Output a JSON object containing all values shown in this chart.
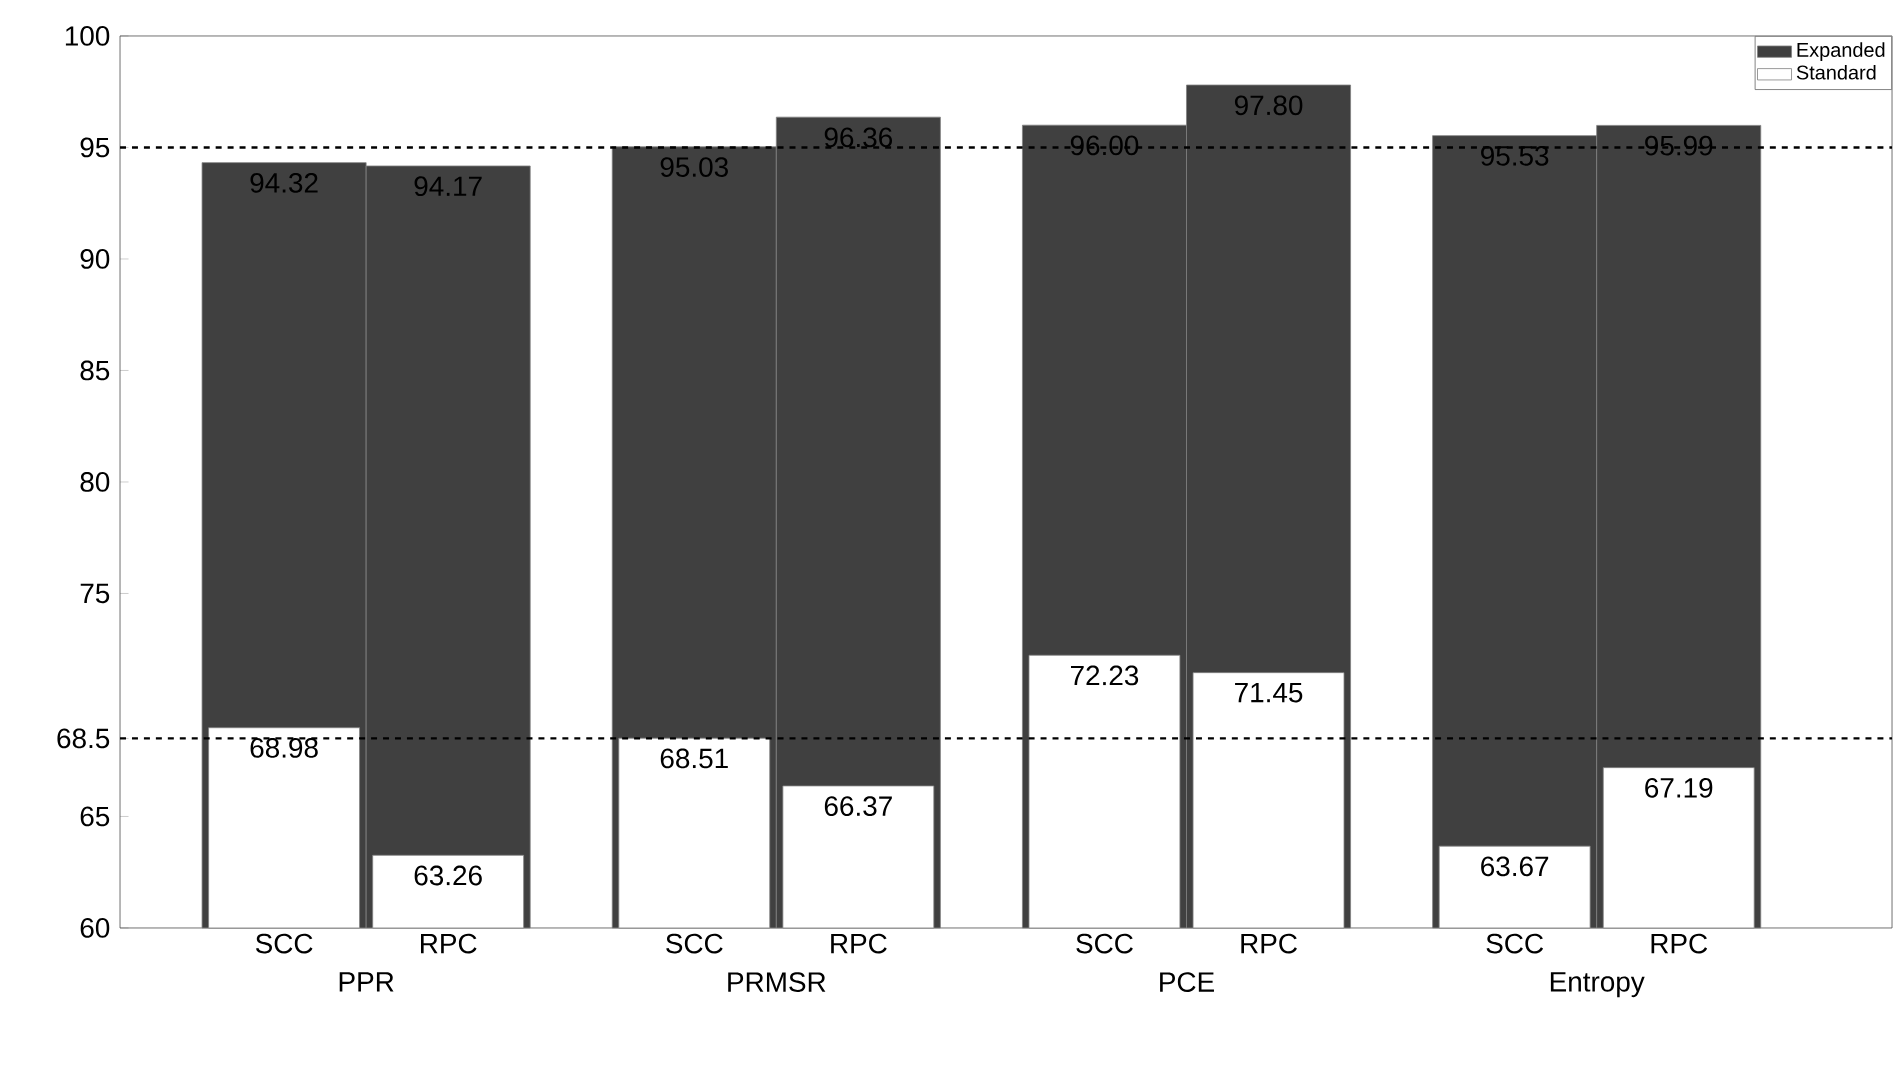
{
  "chart_data": {
    "type": "bar",
    "categories": [
      "SCC",
      "RPC",
      null,
      "SCC",
      "RPC",
      null,
      "SCC",
      "RPC",
      null,
      "SCC",
      "RPC"
    ],
    "series": [
      {
        "name": "Expanded",
        "color": "#404040",
        "values": [
          94.32,
          94.17,
          null,
          95.03,
          96.36,
          null,
          96.0,
          97.8,
          null,
          95.53,
          95.99
        ],
        "value_labels": [
          "94.32",
          "94.17",
          null,
          "95.03",
          "96.36",
          null,
          "96.00",
          "97.80",
          null,
          "95.53",
          "95.99"
        ]
      },
      {
        "name": "Standard",
        "color": "#ffffff",
        "values": [
          68.98,
          63.26,
          null,
          68.51,
          66.37,
          null,
          72.23,
          71.45,
          null,
          63.67,
          67.19
        ],
        "value_labels": [
          "68.98",
          "63.26",
          null,
          "68.51",
          "66.37",
          null,
          "72.23",
          "71.45",
          null,
          "63.67",
          "67.19"
        ]
      }
    ],
    "ylim": [
      60,
      100
    ],
    "yticks": [
      60,
      65,
      68.5,
      75,
      80,
      85,
      90,
      95,
      100
    ],
    "ref_lines": [
      {
        "axis": "y",
        "value": 95,
        "line_style": "dashed",
        "color": "#000000"
      },
      {
        "axis": "y",
        "value": 68.5,
        "line_style": "dashed",
        "color": "#000000"
      }
    ],
    "legend": "top right",
    "annotations": [
      "PPR",
      "PRMSR",
      "PCE",
      "Entropy"
    ]
  }
}
